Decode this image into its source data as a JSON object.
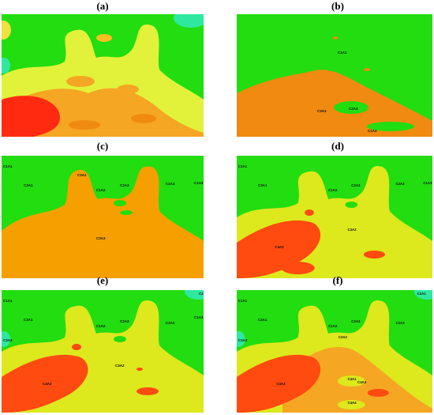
{
  "panels": [
    {
      "label": "(a)",
      "annotations": []
    },
    {
      "label": "(b)",
      "annotations": [
        "C1A1",
        "C3A3",
        "C2A3",
        "C1A3"
      ]
    },
    {
      "label": "(c)",
      "annotations": [
        "C1A1",
        "C3A1",
        "C3A2",
        "C1A2",
        "C2A3",
        "C2A2",
        "C1A3",
        "C3A3"
      ]
    },
    {
      "label": "(d)",
      "annotations": [
        "C1A1",
        "C3A1",
        "C1A2",
        "C2A3",
        "C2A2",
        "C1A3",
        "C3A2",
        "C4A2"
      ]
    },
    {
      "label": "(e)",
      "annotations": [
        "C1A1",
        "C2A1",
        "C3A1",
        "C1A2",
        "C2A3",
        "C2A2",
        "C1A3",
        "C3A3",
        "C3A2",
        "C4A2"
      ]
    },
    {
      "label": "(f)",
      "annotations": [
        "C1A1",
        "C2A1",
        "C3A1",
        "C1A2",
        "C2A3",
        "C2A2",
        "C3A3",
        "C3A2",
        "C4A2",
        "C4A1",
        "C4A3",
        "C4A4"
      ]
    }
  ]
}
